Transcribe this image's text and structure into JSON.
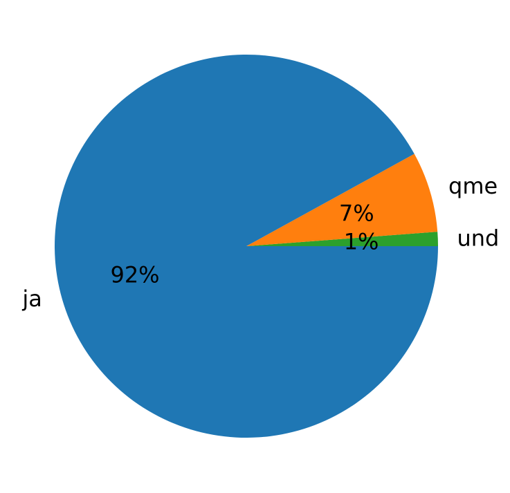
{
  "chart_data": {
    "type": "pie",
    "slices": [
      {
        "label": "und",
        "value": 1.2,
        "pct_label": "1%",
        "color": "#2ca02c"
      },
      {
        "label": "qme",
        "value": 6.8,
        "pct_label": "7%",
        "color": "#ff7f0e"
      },
      {
        "label": "ja",
        "value": 92.0,
        "pct_label": "92%",
        "color": "#1f77b4"
      }
    ],
    "start_angle_deg": 0,
    "direction": "counterclockwise",
    "legend": "none"
  }
}
